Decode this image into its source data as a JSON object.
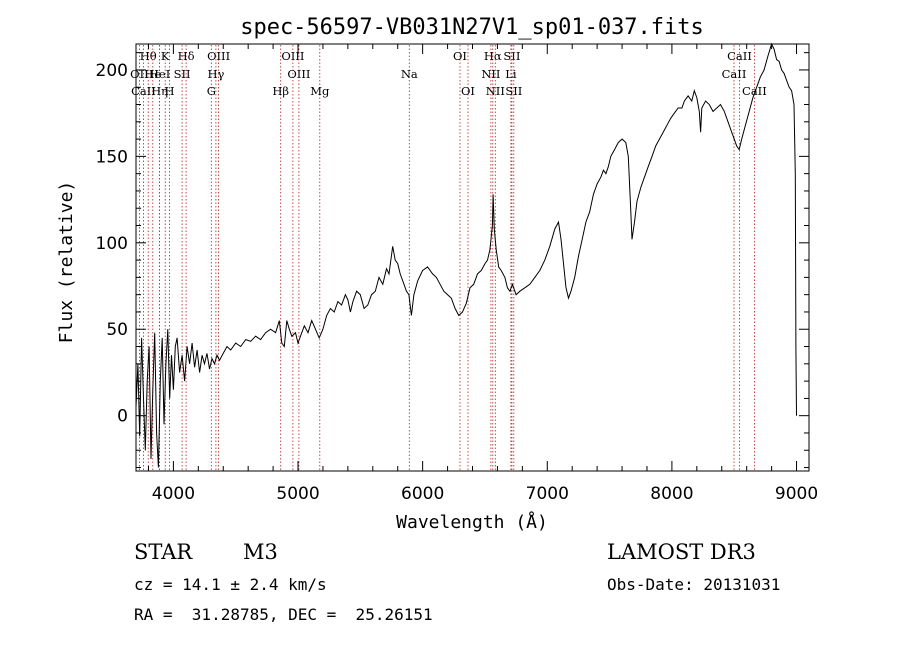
{
  "chart_data": {
    "type": "line",
    "title": "spec-56597-VB031N27V1_sp01-037.fits",
    "xlabel": "Wavelength (Å)",
    "ylabel": "Flux (relative)",
    "xlim": [
      3700,
      9100
    ],
    "ylim": [
      -32,
      215
    ],
    "x_ticks": [
      4000,
      5000,
      6000,
      7000,
      8000,
      9000
    ],
    "y_ticks": [
      0,
      50,
      100,
      150,
      200
    ],
    "series": [
      {
        "name": "flux",
        "points": [
          [
            3700,
            5
          ],
          [
            3715,
            30
          ],
          [
            3730,
            -12
          ],
          [
            3745,
            45
          ],
          [
            3760,
            10
          ],
          [
            3775,
            -20
          ],
          [
            3790,
            20
          ],
          [
            3805,
            40
          ],
          [
            3820,
            -25
          ],
          [
            3835,
            15
          ],
          [
            3850,
            48
          ],
          [
            3865,
            -10
          ],
          [
            3880,
            -30
          ],
          [
            3895,
            20
          ],
          [
            3910,
            45
          ],
          [
            3925,
            -5
          ],
          [
            3940,
            30
          ],
          [
            3955,
            50
          ],
          [
            3970,
            10
          ],
          [
            3985,
            35
          ],
          [
            4000,
            15
          ],
          [
            4015,
            40
          ],
          [
            4030,
            45
          ],
          [
            4050,
            25
          ],
          [
            4070,
            35
          ],
          [
            4090,
            20
          ],
          [
            4110,
            40
          ],
          [
            4130,
            30
          ],
          [
            4150,
            42
          ],
          [
            4170,
            28
          ],
          [
            4190,
            38
          ],
          [
            4210,
            25
          ],
          [
            4230,
            35
          ],
          [
            4250,
            30
          ],
          [
            4270,
            36
          ],
          [
            4290,
            27
          ],
          [
            4310,
            33
          ],
          [
            4330,
            30
          ],
          [
            4350,
            35
          ],
          [
            4370,
            32
          ],
          [
            4400,
            36
          ],
          [
            4430,
            40
          ],
          [
            4460,
            38
          ],
          [
            4500,
            42
          ],
          [
            4540,
            40
          ],
          [
            4580,
            44
          ],
          [
            4620,
            43
          ],
          [
            4660,
            46
          ],
          [
            4700,
            44
          ],
          [
            4740,
            48
          ],
          [
            4780,
            50
          ],
          [
            4820,
            48
          ],
          [
            4850,
            55
          ],
          [
            4870,
            42
          ],
          [
            4890,
            40
          ],
          [
            4910,
            55
          ],
          [
            4930,
            50
          ],
          [
            4950,
            46
          ],
          [
            4980,
            48
          ],
          [
            5000,
            42
          ],
          [
            5020,
            46
          ],
          [
            5050,
            52
          ],
          [
            5080,
            48
          ],
          [
            5110,
            55
          ],
          [
            5140,
            50
          ],
          [
            5170,
            45
          ],
          [
            5200,
            50
          ],
          [
            5230,
            58
          ],
          [
            5260,
            62
          ],
          [
            5290,
            60
          ],
          [
            5320,
            66
          ],
          [
            5350,
            64
          ],
          [
            5380,
            70
          ],
          [
            5400,
            67
          ],
          [
            5420,
            60
          ],
          [
            5440,
            66
          ],
          [
            5470,
            72
          ],
          [
            5500,
            70
          ],
          [
            5530,
            62
          ],
          [
            5560,
            64
          ],
          [
            5590,
            70
          ],
          [
            5620,
            72
          ],
          [
            5650,
            80
          ],
          [
            5680,
            76
          ],
          [
            5710,
            85
          ],
          [
            5730,
            82
          ],
          [
            5760,
            98
          ],
          [
            5780,
            90
          ],
          [
            5800,
            88
          ],
          [
            5820,
            82
          ],
          [
            5850,
            76
          ],
          [
            5870,
            72
          ],
          [
            5890,
            70
          ],
          [
            5910,
            58
          ],
          [
            5930,
            70
          ],
          [
            5960,
            78
          ],
          [
            6000,
            84
          ],
          [
            6040,
            86
          ],
          [
            6080,
            82
          ],
          [
            6110,
            80
          ],
          [
            6140,
            76
          ],
          [
            6170,
            72
          ],
          [
            6200,
            70
          ],
          [
            6230,
            68
          ],
          [
            6260,
            62
          ],
          [
            6290,
            58
          ],
          [
            6320,
            60
          ],
          [
            6350,
            65
          ],
          [
            6380,
            74
          ],
          [
            6410,
            76
          ],
          [
            6440,
            82
          ],
          [
            6470,
            84
          ],
          [
            6500,
            88
          ],
          [
            6520,
            90
          ],
          [
            6540,
            96
          ],
          [
            6560,
            110
          ],
          [
            6565,
            128
          ],
          [
            6575,
            108
          ],
          [
            6590,
            96
          ],
          [
            6610,
            86
          ],
          [
            6630,
            84
          ],
          [
            6660,
            80
          ],
          [
            6680,
            74
          ],
          [
            6700,
            72
          ],
          [
            6720,
            76
          ],
          [
            6750,
            70
          ],
          [
            6780,
            72
          ],
          [
            6820,
            74
          ],
          [
            6860,
            76
          ],
          [
            6900,
            80
          ],
          [
            6940,
            84
          ],
          [
            6980,
            90
          ],
          [
            7020,
            98
          ],
          [
            7060,
            108
          ],
          [
            7090,
            112
          ],
          [
            7110,
            102
          ],
          [
            7130,
            88
          ],
          [
            7150,
            74
          ],
          [
            7170,
            68
          ],
          [
            7190,
            72
          ],
          [
            7220,
            80
          ],
          [
            7250,
            92
          ],
          [
            7280,
            102
          ],
          [
            7310,
            112
          ],
          [
            7340,
            118
          ],
          [
            7370,
            128
          ],
          [
            7400,
            134
          ],
          [
            7430,
            138
          ],
          [
            7450,
            142
          ],
          [
            7470,
            140
          ],
          [
            7490,
            144
          ],
          [
            7510,
            150
          ],
          [
            7540,
            154
          ],
          [
            7570,
            158
          ],
          [
            7600,
            160
          ],
          [
            7630,
            158
          ],
          [
            7650,
            150
          ],
          [
            7670,
            118
          ],
          [
            7680,
            102
          ],
          [
            7700,
            112
          ],
          [
            7720,
            124
          ],
          [
            7750,
            132
          ],
          [
            7780,
            138
          ],
          [
            7810,
            144
          ],
          [
            7840,
            150
          ],
          [
            7870,
            156
          ],
          [
            7900,
            160
          ],
          [
            7930,
            164
          ],
          [
            7960,
            168
          ],
          [
            7990,
            172
          ],
          [
            8020,
            175
          ],
          [
            8050,
            178
          ],
          [
            8080,
            178
          ],
          [
            8100,
            182
          ],
          [
            8130,
            185
          ],
          [
            8160,
            182
          ],
          [
            8180,
            188
          ],
          [
            8200,
            184
          ],
          [
            8220,
            176
          ],
          [
            8230,
            164
          ],
          [
            8240,
            178
          ],
          [
            8270,
            182
          ],
          [
            8300,
            180
          ],
          [
            8330,
            176
          ],
          [
            8360,
            178
          ],
          [
            8390,
            180
          ],
          [
            8420,
            176
          ],
          [
            8450,
            170
          ],
          [
            8480,
            164
          ],
          [
            8500,
            160
          ],
          [
            8520,
            156
          ],
          [
            8540,
            154
          ],
          [
            8560,
            160
          ],
          [
            8590,
            168
          ],
          [
            8620,
            176
          ],
          [
            8650,
            184
          ],
          [
            8680,
            190
          ],
          [
            8710,
            196
          ],
          [
            8740,
            200
          ],
          [
            8770,
            208
          ],
          [
            8800,
            215
          ],
          [
            8820,
            212
          ],
          [
            8840,
            206
          ],
          [
            8860,
            205
          ],
          [
            8880,
            200
          ],
          [
            8900,
            198
          ],
          [
            8920,
            194
          ],
          [
            8940,
            190
          ],
          [
            8960,
            188
          ],
          [
            8980,
            180
          ],
          [
            8990,
            140
          ],
          [
            8995,
            40
          ],
          [
            9000,
            0
          ]
        ]
      }
    ],
    "line_markers": [
      {
        "label": "Hθ",
        "x": 3798,
        "row": 1
      },
      {
        "label": "OII",
        "x": 3727,
        "row": 2
      },
      {
        "label": "CaII",
        "x": 3760,
        "row": 3
      },
      {
        "label": "He",
        "x": 3835,
        "row": 2
      },
      {
        "label": "Hη",
        "x": 3889,
        "row": 3
      },
      {
        "label": "K",
        "x": 3934,
        "row": 1
      },
      {
        "label": "H",
        "x": 3969,
        "row": 3
      },
      {
        "label": "HeI",
        "x": 3889,
        "row": 2
      },
      {
        "label": "SII",
        "x": 4070,
        "row": 2
      },
      {
        "label": "Hδ",
        "x": 4102,
        "row": 1
      },
      {
        "label": "OIII",
        "x": 4363,
        "row": 1
      },
      {
        "label": "Hγ",
        "x": 4341,
        "row": 2
      },
      {
        "label": "G",
        "x": 4304,
        "row": 3
      },
      {
        "label": "Hβ",
        "x": 4861,
        "row": 3
      },
      {
        "label": "OIII",
        "x": 4959,
        "row": 1
      },
      {
        "label": "OIII",
        "x": 5007,
        "row": 2
      },
      {
        "label": "Mg",
        "x": 5175,
        "row": 3
      },
      {
        "label": "Na",
        "x": 5893,
        "row": 2
      },
      {
        "label": "OI",
        "x": 6300,
        "row": 1
      },
      {
        "label": "OI",
        "x": 6364,
        "row": 3
      },
      {
        "label": "Hα",
        "x": 6563,
        "row": 1
      },
      {
        "label": "NII",
        "x": 6548,
        "row": 2
      },
      {
        "label": "NII",
        "x": 6583,
        "row": 3
      },
      {
        "label": "SII",
        "x": 6716,
        "row": 1
      },
      {
        "label": "Li",
        "x": 6708,
        "row": 2
      },
      {
        "label": "SII",
        "x": 6731,
        "row": 3
      },
      {
        "label": "CaII",
        "x": 8542,
        "row": 1
      },
      {
        "label": "CaII",
        "x": 8498,
        "row": 2
      },
      {
        "label": "CaII",
        "x": 8662,
        "row": 3
      }
    ]
  },
  "info": {
    "object_class": "STAR",
    "subclass": "M3",
    "survey": "LAMOST DR3",
    "cz": "cz = 14.1 ± 2.4 km/s",
    "obs_date": "Obs-Date: 20131031",
    "coords": "RA =  31.28785, DEC =  25.26151"
  }
}
